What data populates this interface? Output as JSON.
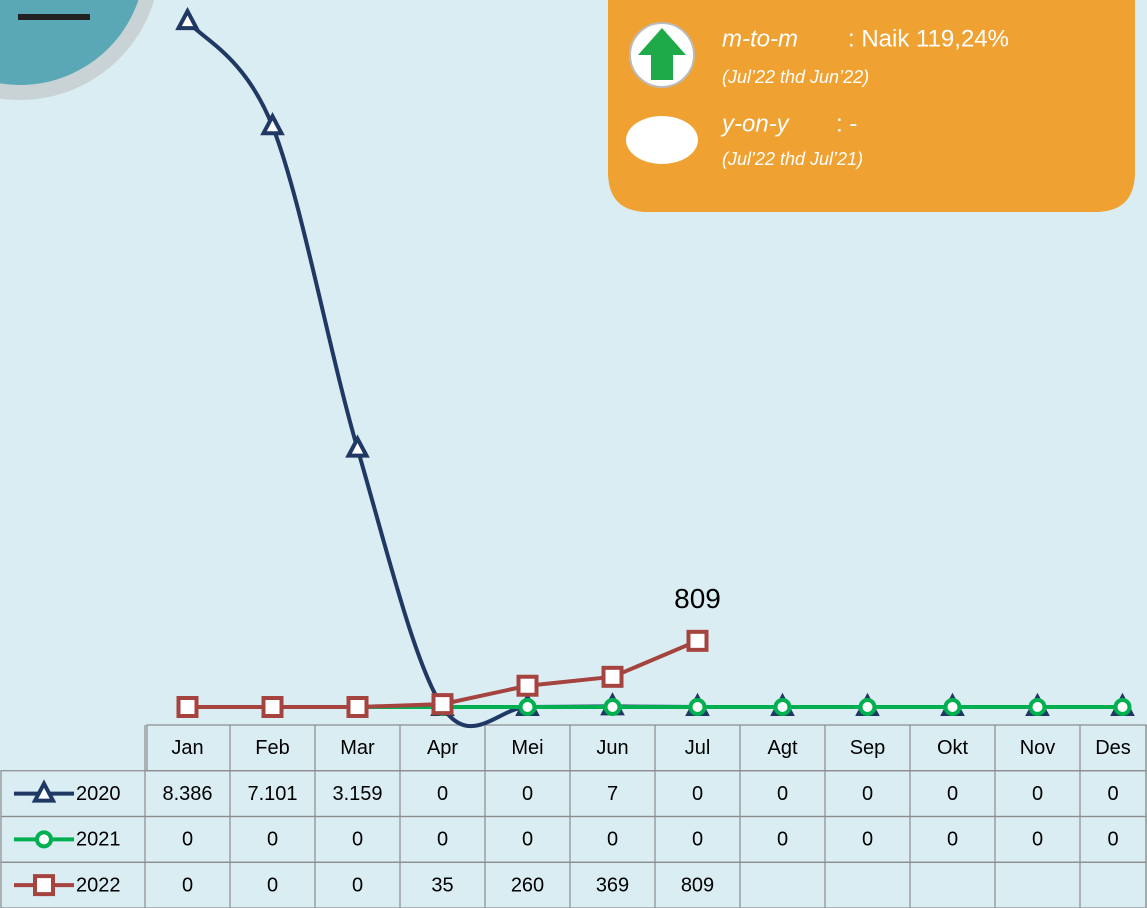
{
  "chart_data": {
    "type": "line",
    "categories": [
      "Jan",
      "Feb",
      "Mar",
      "Apr",
      "Mei",
      "Jun",
      "Jul",
      "Agt",
      "Sep",
      "Okt",
      "Nov",
      "Des"
    ],
    "ylim": [
      0,
      8400
    ],
    "series": [
      {
        "name": "2020",
        "color": "#1f3864",
        "marker": "triangle",
        "smooth": true,
        "values": [
          8386,
          7101,
          3159,
          0,
          0,
          7,
          0,
          0,
          0,
          0,
          0,
          0
        ],
        "value_labels": [
          "8.386",
          "7.101",
          "3.159",
          "0",
          "0",
          "7",
          "0",
          "0",
          "0",
          "0",
          "0",
          "0"
        ]
      },
      {
        "name": "2021",
        "color": "#00b050",
        "marker": "circle",
        "smooth": false,
        "values": [
          0,
          0,
          0,
          0,
          0,
          0,
          0,
          0,
          0,
          0,
          0,
          0
        ]
      },
      {
        "name": "2022",
        "color": "#a5433f",
        "marker": "square",
        "smooth": false,
        "values": [
          0,
          0,
          0,
          35,
          260,
          369,
          809,
          null,
          null,
          null,
          null,
          null
        ],
        "data_label_index": 6
      }
    ],
    "annotations": {
      "mtom_label": "m-to-m",
      "mtom_value": ": Naik 119,24%",
      "mtom_period": "(Jul’22 thd Jun’22)",
      "yoy_label": "y-on-y",
      "yoy_value": ": -",
      "yoy_period": "(Jul’22 thd Jul’21)"
    }
  }
}
